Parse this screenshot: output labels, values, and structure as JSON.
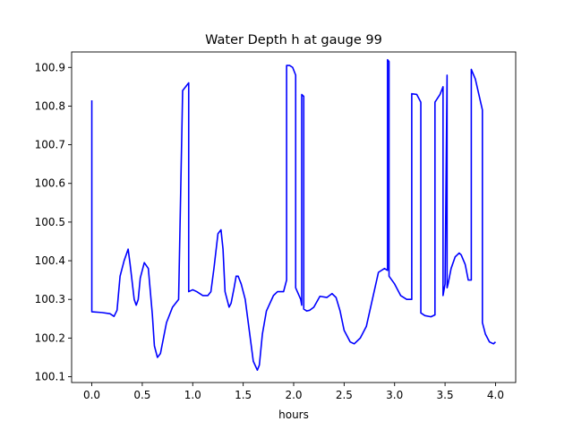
{
  "chart_data": {
    "type": "line",
    "title": "Water Depth h at gauge 99",
    "xlabel": "hours",
    "ylabel": "",
    "xlim": [
      -0.2,
      4.2
    ],
    "ylim": [
      100.085,
      100.94
    ],
    "grid": false,
    "legend": "none",
    "x_ticks": [
      {
        "value": 0.0,
        "label": "0.0"
      },
      {
        "value": 0.5,
        "label": "0.5"
      },
      {
        "value": 1.0,
        "label": "1.0"
      },
      {
        "value": 1.5,
        "label": "1.5"
      },
      {
        "value": 2.0,
        "label": "2.0"
      },
      {
        "value": 2.5,
        "label": "2.5"
      },
      {
        "value": 3.0,
        "label": "3.0"
      },
      {
        "value": 3.5,
        "label": "3.5"
      },
      {
        "value": 4.0,
        "label": "4.0"
      }
    ],
    "y_ticks": [
      {
        "value": 100.1,
        "label": "100.1"
      },
      {
        "value": 100.2,
        "label": "100.2"
      },
      {
        "value": 100.3,
        "label": "100.3"
      },
      {
        "value": 100.4,
        "label": "100.4"
      },
      {
        "value": 100.5,
        "label": "100.5"
      },
      {
        "value": 100.6,
        "label": "100.6"
      },
      {
        "value": 100.7,
        "label": "100.7"
      },
      {
        "value": 100.8,
        "label": "100.8"
      },
      {
        "value": 100.9,
        "label": "100.9"
      }
    ],
    "series": [
      {
        "color": "#0000ff",
        "x": [
          0.0,
          0.0,
          0.003,
          0.1,
          0.18,
          0.22,
          0.25,
          0.28,
          0.32,
          0.36,
          0.38,
          0.42,
          0.44,
          0.46,
          0.48,
          0.52,
          0.56,
          0.58,
          0.6,
          0.62,
          0.65,
          0.68,
          0.71,
          0.74,
          0.8,
          0.86,
          0.9,
          0.9,
          0.96,
          0.96,
          1.0,
          1.04,
          1.1,
          1.15,
          1.18,
          1.21,
          1.25,
          1.28,
          1.3,
          1.32,
          1.36,
          1.38,
          1.41,
          1.43,
          1.45,
          1.48,
          1.52,
          1.56,
          1.6,
          1.64,
          1.66,
          1.69,
          1.73,
          1.8,
          1.84,
          1.9,
          1.93,
          1.93,
          1.96,
          1.99,
          2.02,
          2.02,
          2.07,
          2.08,
          2.08,
          2.1,
          2.1,
          2.13,
          2.16,
          2.2,
          2.26,
          2.33,
          2.38,
          2.42,
          2.46,
          2.5,
          2.56,
          2.6,
          2.66,
          2.72,
          2.78,
          2.84,
          2.9,
          2.93,
          2.93,
          2.945,
          2.945,
          3.0,
          3.06,
          3.12,
          3.17,
          3.17,
          3.22,
          3.26,
          3.26,
          3.3,
          3.36,
          3.4,
          3.4,
          3.45,
          3.48,
          3.48,
          3.5,
          3.52,
          3.52,
          3.53,
          3.56,
          3.6,
          3.64,
          3.66,
          3.7,
          3.73,
          3.76,
          3.76,
          3.8,
          3.87,
          3.87,
          3.9,
          3.94,
          3.98,
          4.0
        ],
        "y": [
          100.815,
          100.268,
          100.268,
          100.266,
          100.263,
          100.256,
          100.272,
          100.36,
          100.4,
          100.43,
          100.39,
          100.3,
          100.285,
          100.3,
          100.355,
          100.395,
          100.38,
          100.32,
          100.26,
          100.18,
          100.15,
          100.16,
          100.2,
          100.24,
          100.28,
          100.3,
          100.84,
          100.84,
          100.86,
          100.32,
          100.325,
          100.32,
          100.31,
          100.31,
          100.32,
          100.38,
          100.47,
          100.48,
          100.43,
          100.32,
          100.28,
          100.29,
          100.33,
          100.36,
          100.36,
          100.34,
          100.3,
          100.22,
          100.14,
          100.117,
          100.13,
          100.21,
          100.27,
          100.31,
          100.32,
          100.32,
          100.35,
          100.905,
          100.905,
          100.9,
          100.88,
          100.33,
          100.3,
          100.285,
          100.83,
          100.825,
          100.275,
          100.27,
          100.272,
          100.28,
          100.308,
          100.305,
          100.315,
          100.305,
          100.27,
          100.22,
          100.19,
          100.185,
          100.2,
          100.23,
          100.3,
          100.37,
          100.38,
          100.375,
          100.92,
          100.915,
          100.36,
          100.34,
          100.31,
          100.3,
          100.3,
          100.832,
          100.83,
          100.81,
          100.265,
          100.258,
          100.255,
          100.26,
          100.81,
          100.83,
          100.85,
          100.31,
          100.34,
          100.88,
          100.33,
          100.34,
          100.38,
          100.41,
          100.42,
          100.415,
          100.39,
          100.35,
          100.35,
          100.895,
          100.87,
          100.79,
          100.24,
          100.21,
          100.19,
          100.185,
          100.19
        ]
      }
    ]
  }
}
